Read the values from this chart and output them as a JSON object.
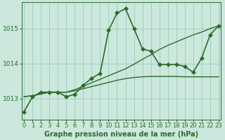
{
  "background_color": "#cce8dc",
  "grid_color": "#99ccbb",
  "line_color": "#2d6b2d",
  "marker_color": "#2d6b2d",
  "xlabel": "Graphe pression niveau de la mer (hPa)",
  "xlabel_fontsize": 7,
  "tick_fontsize": 6,
  "ylim": [
    1012.4,
    1015.75
  ],
  "xlim": [
    -0.3,
    23.3
  ],
  "yticks": [
    1013,
    1014,
    1015
  ],
  "xticks": [
    0,
    1,
    2,
    3,
    4,
    5,
    6,
    7,
    8,
    9,
    10,
    11,
    12,
    13,
    14,
    15,
    16,
    17,
    18,
    19,
    20,
    21,
    22,
    23
  ],
  "series": [
    {
      "x": [
        0,
        1,
        2,
        3,
        4,
        5,
        6,
        7,
        8,
        9,
        10,
        11,
        12,
        13,
        14,
        15,
        16,
        17,
        18,
        19,
        20,
        21,
        22,
        23
      ],
      "y": [
        1012.62,
        1013.05,
        1013.18,
        1013.18,
        1013.18,
        1013.05,
        1013.12,
        1013.38,
        1013.58,
        1013.72,
        1014.95,
        1015.45,
        1015.57,
        1015.0,
        1014.42,
        1014.35,
        1013.97,
        1013.97,
        1013.97,
        1013.92,
        1013.75,
        1014.15,
        1014.82,
        1015.08
      ],
      "marker": "D",
      "markersize": 3.0,
      "linewidth": 1.2
    },
    {
      "x": [
        0,
        1,
        2,
        3,
        4,
        5,
        6,
        7,
        8,
        9,
        10,
        11,
        12,
        13,
        14,
        15,
        16,
        17,
        18,
        19,
        20,
        21,
        22,
        23
      ],
      "y": [
        1013.05,
        1013.08,
        1013.13,
        1013.18,
        1013.18,
        1013.18,
        1013.25,
        1013.35,
        1013.45,
        1013.55,
        1013.65,
        1013.75,
        1013.85,
        1013.98,
        1014.12,
        1014.25,
        1014.4,
        1014.52,
        1014.62,
        1014.72,
        1014.82,
        1014.9,
        1015.0,
        1015.08
      ],
      "marker": null,
      "markersize": 0,
      "linewidth": 1.0
    },
    {
      "x": [
        0,
        1,
        2,
        3,
        4,
        5,
        6,
        7,
        8,
        9,
        10,
        11,
        12,
        13,
        14,
        15,
        16,
        17,
        18,
        19,
        20,
        21,
        22,
        23
      ],
      "y": [
        1013.05,
        1013.08,
        1013.13,
        1013.18,
        1013.18,
        1013.18,
        1013.22,
        1013.28,
        1013.34,
        1013.4,
        1013.46,
        1013.52,
        1013.57,
        1013.6,
        1013.62,
        1013.63,
        1013.63,
        1013.63,
        1013.63,
        1013.62,
        1013.62,
        1013.62,
        1013.62,
        1013.62
      ],
      "marker": null,
      "markersize": 0,
      "linewidth": 1.0
    }
  ]
}
